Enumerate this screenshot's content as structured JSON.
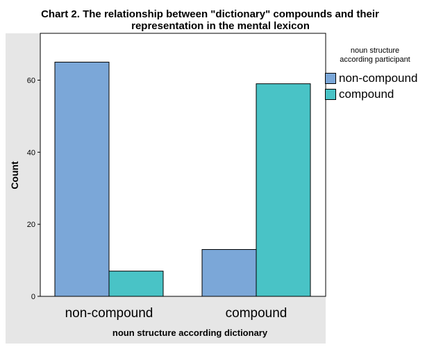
{
  "chart_data": {
    "type": "bar",
    "title": "Chart 2. The relationship between \"dictionary\" compounds and their representation in the mental lexicon",
    "title_lines": [
      "Chart 2. The relationship between \"dictionary\" compounds and their",
      "representation in the mental lexicon"
    ],
    "xlabel": "noun structure according dictionary",
    "ylabel": "Count",
    "categories": [
      "non-compound",
      "compound"
    ],
    "series": [
      {
        "name": "non-compound",
        "color": "#7ba7d8",
        "values": [
          65,
          13
        ]
      },
      {
        "name": "compound",
        "color": "#49c3c6",
        "values": [
          7,
          59
        ]
      }
    ],
    "ylim": [
      0,
      73
    ],
    "yticks": [
      0,
      20,
      40,
      60
    ],
    "legend": {
      "title_lines": [
        "noun structure",
        "according participant"
      ],
      "position": "right"
    },
    "grid": false,
    "plot_background": "#ffffff",
    "frame_background": "#e6e6e6"
  }
}
